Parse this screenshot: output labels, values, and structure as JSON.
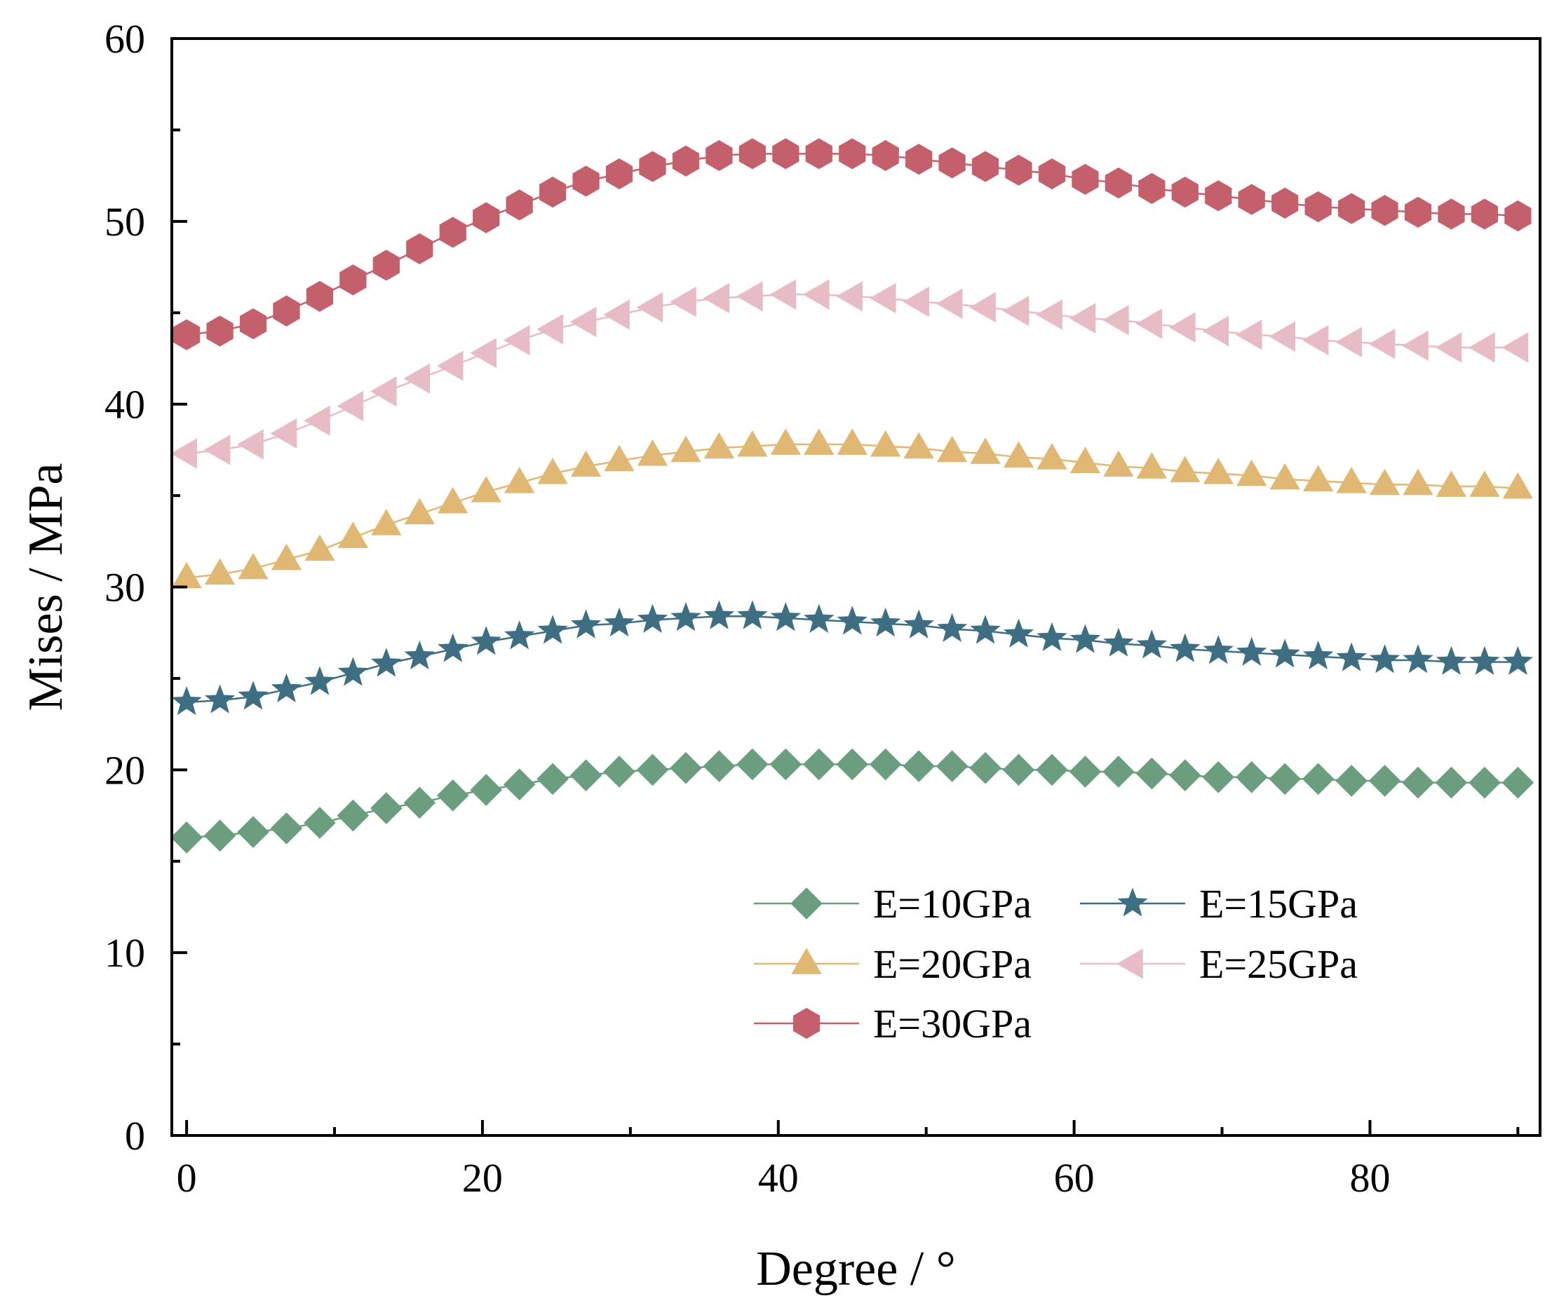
{
  "chart_data": {
    "type": "line",
    "title": "",
    "xlabel": "Degree / °",
    "ylabel": "Mises / MPa",
    "xlim": [
      -1,
      91.5
    ],
    "ylim": [
      0,
      60
    ],
    "xticks": [
      0,
      20,
      40,
      60,
      80
    ],
    "yticks": [
      0,
      10,
      20,
      30,
      40,
      50,
      60
    ],
    "x_tick_labels": [
      "0",
      "20",
      "40",
      "60",
      "80"
    ],
    "y_tick_labels": [
      "0",
      "10",
      "20",
      "30",
      "40",
      "50",
      "60"
    ],
    "grid": false,
    "legend_position": "bottom-right",
    "x": [
      0,
      2.25,
      4.5,
      6.75,
      9,
      11.25,
      13.5,
      15.75,
      18,
      20.25,
      22.5,
      24.75,
      27,
      29.25,
      31.5,
      33.75,
      36,
      38.25,
      40.5,
      42.75,
      45,
      47.25,
      49.5,
      51.75,
      54,
      56.25,
      58.5,
      60.75,
      63,
      65.25,
      67.5,
      69.75,
      72,
      74.25,
      76.5,
      78.75,
      81,
      83.25,
      85.5,
      87.75,
      90
    ],
    "series": [
      {
        "name": "E=10GPa",
        "marker": "diamond",
        "color": "#6a9e7e",
        "values": [
          16.3,
          16.4,
          16.6,
          16.8,
          17.1,
          17.5,
          17.9,
          18.2,
          18.6,
          18.9,
          19.2,
          19.5,
          19.7,
          19.9,
          20.0,
          20.1,
          20.2,
          20.3,
          20.3,
          20.3,
          20.3,
          20.3,
          20.2,
          20.2,
          20.1,
          20.0,
          20.0,
          19.9,
          19.9,
          19.8,
          19.7,
          19.6,
          19.6,
          19.5,
          19.5,
          19.4,
          19.4,
          19.3,
          19.3,
          19.3,
          19.3
        ]
      },
      {
        "name": "E=15GPa",
        "marker": "star",
        "color": "#3e6e82",
        "values": [
          23.7,
          23.8,
          24.0,
          24.4,
          24.8,
          25.3,
          25.8,
          26.2,
          26.6,
          27.0,
          27.3,
          27.6,
          27.9,
          28.0,
          28.2,
          28.3,
          28.4,
          28.4,
          28.3,
          28.2,
          28.1,
          28.0,
          27.9,
          27.7,
          27.6,
          27.4,
          27.2,
          27.1,
          26.9,
          26.8,
          26.6,
          26.5,
          26.4,
          26.3,
          26.2,
          26.1,
          26.0,
          26.0,
          25.9,
          25.9,
          25.9
        ]
      },
      {
        "name": "E=20GPa",
        "marker": "triangle-up",
        "color": "#e1b873",
        "values": [
          30.5,
          30.7,
          31.0,
          31.5,
          32.0,
          32.7,
          33.4,
          34.0,
          34.6,
          35.2,
          35.7,
          36.2,
          36.6,
          36.9,
          37.2,
          37.4,
          37.6,
          37.7,
          37.8,
          37.8,
          37.8,
          37.7,
          37.6,
          37.4,
          37.3,
          37.1,
          37.0,
          36.8,
          36.6,
          36.5,
          36.3,
          36.2,
          36.1,
          35.9,
          35.8,
          35.7,
          35.6,
          35.6,
          35.5,
          35.5,
          35.4
        ]
      },
      {
        "name": "E=25GPa",
        "marker": "triangle-left",
        "color": "#e8bcc4",
        "values": [
          37.3,
          37.5,
          37.8,
          38.4,
          39.1,
          39.9,
          40.7,
          41.4,
          42.1,
          42.8,
          43.5,
          44.1,
          44.5,
          44.9,
          45.3,
          45.6,
          45.8,
          45.9,
          46.0,
          46.0,
          45.9,
          45.8,
          45.6,
          45.5,
          45.3,
          45.1,
          44.9,
          44.7,
          44.6,
          44.4,
          44.2,
          44.0,
          43.8,
          43.7,
          43.5,
          43.4,
          43.3,
          43.2,
          43.1,
          43.1,
          43.1
        ]
      },
      {
        "name": "E=30GPa",
        "marker": "hexagon",
        "color": "#c4606b",
        "values": [
          43.8,
          44.0,
          44.4,
          45.1,
          45.9,
          46.8,
          47.6,
          48.5,
          49.4,
          50.2,
          50.9,
          51.6,
          52.2,
          52.6,
          53.0,
          53.3,
          53.6,
          53.7,
          53.7,
          53.7,
          53.7,
          53.6,
          53.4,
          53.2,
          53.0,
          52.8,
          52.6,
          52.3,
          52.1,
          51.8,
          51.6,
          51.4,
          51.2,
          51.0,
          50.8,
          50.7,
          50.6,
          50.5,
          50.4,
          50.4,
          50.3
        ]
      }
    ]
  }
}
